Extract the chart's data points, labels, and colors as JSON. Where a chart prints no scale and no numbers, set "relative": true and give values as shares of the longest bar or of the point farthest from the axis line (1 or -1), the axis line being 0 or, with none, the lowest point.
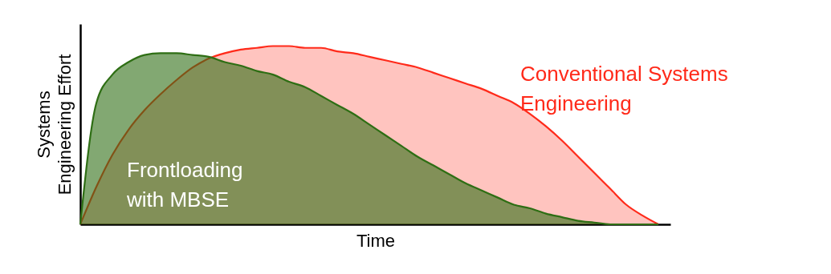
{
  "chart_data": {
    "type": "area",
    "relative": true,
    "xlabel": "Time",
    "ylabel": "Systems Engineering Effort",
    "grid": false,
    "categories": [
      null,
      null,
      null,
      null,
      null,
      null,
      null,
      null,
      null,
      null,
      null,
      null,
      null,
      null,
      null,
      null,
      null,
      null,
      null,
      null,
      null,
      null,
      null,
      null,
      null,
      null,
      null,
      null,
      null,
      null,
      null,
      null,
      null,
      null,
      null,
      null,
      null
    ],
    "series": [
      {
        "name": "Conventional Systems Engineering",
        "color": "#ff2a1a",
        "values": [
          0,
          0.21,
          0.39,
          0.53,
          0.64,
          0.73,
          0.81,
          0.88,
          0.93,
          0.96,
          0.98,
          0.99,
          1.0,
          1.0,
          0.99,
          0.99,
          0.97,
          0.96,
          0.94,
          0.92,
          0.9,
          0.88,
          0.85,
          0.82,
          0.79,
          0.76,
          0.72,
          0.68,
          0.62,
          0.55,
          0.47,
          0.38,
          0.29,
          0.2,
          0.11,
          0.05,
          0
        ]
      },
      {
        "name": "Frontloading with MBSE",
        "color": "#2e6e14",
        "values": [
          0,
          0.68,
          0.84,
          0.91,
          0.95,
          0.96,
          0.96,
          0.95,
          0.94,
          0.91,
          0.89,
          0.86,
          0.84,
          0.8,
          0.77,
          0.72,
          0.67,
          0.62,
          0.56,
          0.5,
          0.44,
          0.38,
          0.33,
          0.28,
          0.23,
          0.19,
          0.15,
          0.11,
          0.09,
          0.06,
          0.04,
          0.02,
          0.01,
          0,
          0,
          0,
          0
        ]
      }
    ]
  }
}
